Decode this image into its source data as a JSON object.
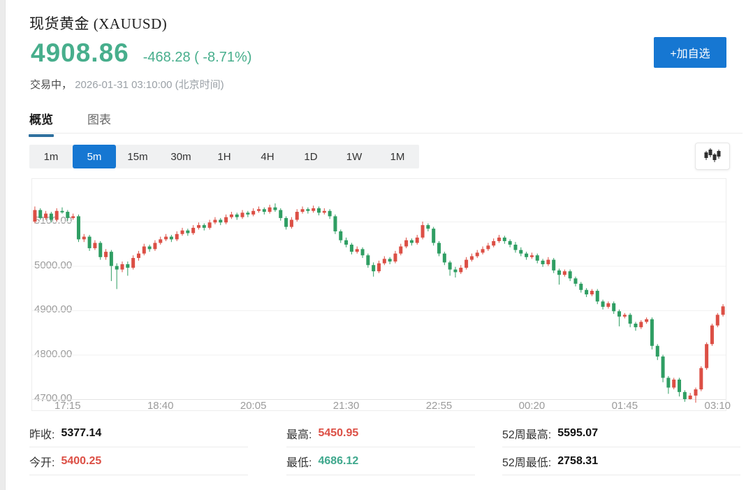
{
  "header": {
    "title": "现货黄金 (XAUUSD)",
    "price": "4908.86",
    "change": "-468.28 ( -8.71%)",
    "status_prefix": "交易中，",
    "timestamp": "2026-01-31 03:10:00 (北京时间)",
    "favorite_button_label": "+加自选",
    "price_color": "#47ae8c",
    "button_color": "#1677d2"
  },
  "tabs": [
    {
      "label": "概览",
      "active": true
    },
    {
      "label": "图表",
      "active": false
    }
  ],
  "toolbar": {
    "timeframes": [
      "1m",
      "5m",
      "15m",
      "30m",
      "1H",
      "4H",
      "1D",
      "1W",
      "1M"
    ],
    "active_timeframe": "5m",
    "chart_style_icon": "candlestick-icon"
  },
  "chart_data": {
    "type": "candlestick",
    "symbol": "XAUUSD",
    "interval": "5m",
    "start_time": "16:45",
    "up_color": "#dc4f45",
    "down_color": "#2f9e63",
    "grid": true,
    "ylim": [
      4675,
      5196
    ],
    "y_ticks": [
      {
        "label": "5100.00",
        "price": 5100
      },
      {
        "label": "5000.00",
        "price": 5000
      },
      {
        "label": "4900.00",
        "price": 4900
      },
      {
        "label": "4800.00",
        "price": 4800
      },
      {
        "label": "4700.00",
        "price": 4700
      }
    ],
    "x_ticks": [
      {
        "label": "17:15",
        "index": 6
      },
      {
        "label": "18:40",
        "index": 23
      },
      {
        "label": "20:05",
        "index": 40
      },
      {
        "label": "21:30",
        "index": 57
      },
      {
        "label": "22:55",
        "index": 74
      },
      {
        "label": "00:20",
        "index": 91
      },
      {
        "label": "01:45",
        "index": 108
      },
      {
        "label": "03:10",
        "index": 125
      }
    ],
    "candles": [
      [
        5100,
        5134,
        5096,
        5126
      ],
      [
        5126,
        5130,
        5104,
        5108
      ],
      [
        5108,
        5124,
        5104,
        5118
      ],
      [
        5118,
        5122,
        5098,
        5104
      ],
      [
        5104,
        5130,
        5100,
        5124
      ],
      [
        5124,
        5132,
        5118,
        5122
      ],
      [
        5122,
        5126,
        5102,
        5108
      ],
      [
        5108,
        5118,
        5104,
        5112
      ],
      [
        5112,
        5116,
        5054,
        5060
      ],
      [
        5060,
        5072,
        5054,
        5066
      ],
      [
        5066,
        5070,
        5034,
        5040
      ],
      [
        5040,
        5058,
        5036,
        5052
      ],
      [
        5052,
        5056,
        5014,
        5020
      ],
      [
        5020,
        5038,
        5014,
        5032
      ],
      [
        5032,
        5036,
        4966,
        5000
      ],
      [
        5000,
        5006,
        4948,
        4992
      ],
      [
        4992,
        5010,
        4986,
        5004
      ],
      [
        5004,
        5010,
        4978,
        4996
      ],
      [
        4996,
        5024,
        4992,
        5018
      ],
      [
        5018,
        5034,
        5012,
        5028
      ],
      [
        5028,
        5050,
        5024,
        5044
      ],
      [
        5044,
        5048,
        5032,
        5038
      ],
      [
        5038,
        5058,
        5034,
        5052
      ],
      [
        5052,
        5066,
        5048,
        5060
      ],
      [
        5060,
        5072,
        5056,
        5066
      ],
      [
        5066,
        5070,
        5054,
        5060
      ],
      [
        5060,
        5078,
        5056,
        5072
      ],
      [
        5072,
        5086,
        5068,
        5080
      ],
      [
        5080,
        5084,
        5068,
        5074
      ],
      [
        5074,
        5092,
        5070,
        5086
      ],
      [
        5086,
        5098,
        5082,
        5092
      ],
      [
        5092,
        5096,
        5080,
        5086
      ],
      [
        5086,
        5104,
        5082,
        5098
      ],
      [
        5098,
        5110,
        5094,
        5104
      ],
      [
        5104,
        5108,
        5092,
        5098
      ],
      [
        5098,
        5116,
        5094,
        5110
      ],
      [
        5110,
        5122,
        5106,
        5116
      ],
      [
        5116,
        5120,
        5104,
        5110
      ],
      [
        5110,
        5126,
        5106,
        5120
      ],
      [
        5120,
        5124,
        5110,
        5116
      ],
      [
        5116,
        5130,
        5112,
        5124
      ],
      [
        5124,
        5134,
        5120,
        5128
      ],
      [
        5128,
        5132,
        5116,
        5122
      ],
      [
        5122,
        5138,
        5118,
        5132
      ],
      [
        5132,
        5141,
        5122,
        5126
      ],
      [
        5126,
        5130,
        5102,
        5108
      ],
      [
        5108,
        5112,
        5082,
        5088
      ],
      [
        5088,
        5110,
        5084,
        5104
      ],
      [
        5104,
        5128,
        5100,
        5122
      ],
      [
        5122,
        5134,
        5118,
        5128
      ],
      [
        5128,
        5132,
        5118,
        5124
      ],
      [
        5124,
        5136,
        5120,
        5130
      ],
      [
        5130,
        5134,
        5114,
        5120
      ],
      [
        5120,
        5130,
        5116,
        5124
      ],
      [
        5124,
        5128,
        5106,
        5112
      ],
      [
        5112,
        5116,
        5072,
        5078
      ],
      [
        5078,
        5082,
        5052,
        5058
      ],
      [
        5058,
        5064,
        5042,
        5048
      ],
      [
        5048,
        5052,
        5026,
        5032
      ],
      [
        5032,
        5044,
        5028,
        5038
      ],
      [
        5038,
        5042,
        5018,
        5024
      ],
      [
        5024,
        5028,
        4996,
        5002
      ],
      [
        5002,
        5008,
        4976,
        4988
      ],
      [
        4988,
        5012,
        4984,
        5006
      ],
      [
        5006,
        5022,
        5002,
        5016
      ],
      [
        5016,
        5020,
        5004,
        5010
      ],
      [
        5010,
        5034,
        5006,
        5028
      ],
      [
        5028,
        5050,
        5024,
        5044
      ],
      [
        5044,
        5064,
        5040,
        5058
      ],
      [
        5058,
        5062,
        5046,
        5052
      ],
      [
        5052,
        5070,
        5048,
        5064
      ],
      [
        5064,
        5100,
        5060,
        5092
      ],
      [
        5092,
        5096,
        5078,
        5084
      ],
      [
        5084,
        5088,
        5046,
        5052
      ],
      [
        5052,
        5056,
        5022,
        5028
      ],
      [
        5028,
        5032,
        5002,
        5008
      ],
      [
        5008,
        5012,
        4978,
        4992
      ],
      [
        4992,
        4998,
        4974,
        4986
      ],
      [
        4986,
        5002,
        4982,
        4996
      ],
      [
        4996,
        5020,
        4992,
        5014
      ],
      [
        5014,
        5028,
        5010,
        5022
      ],
      [
        5022,
        5036,
        5018,
        5030
      ],
      [
        5030,
        5044,
        5026,
        5038
      ],
      [
        5038,
        5052,
        5034,
        5046
      ],
      [
        5046,
        5062,
        5042,
        5056
      ],
      [
        5056,
        5070,
        5052,
        5064
      ],
      [
        5064,
        5068,
        5050,
        5056
      ],
      [
        5056,
        5060,
        5042,
        5048
      ],
      [
        5048,
        5054,
        5030,
        5036
      ],
      [
        5036,
        5042,
        5022,
        5028
      ],
      [
        5028,
        5032,
        5014,
        5020
      ],
      [
        5020,
        5030,
        5016,
        5024
      ],
      [
        5024,
        5028,
        5006,
        5012
      ],
      [
        5012,
        5016,
        4998,
        5004
      ],
      [
        5004,
        5020,
        5000,
        5014
      ],
      [
        5014,
        5018,
        4984,
        4990
      ],
      [
        4990,
        4994,
        4958,
        4980
      ],
      [
        4980,
        4992,
        4976,
        4988
      ],
      [
        4988,
        4992,
        4966,
        4972
      ],
      [
        4972,
        4976,
        4954,
        4960
      ],
      [
        4960,
        4964,
        4940,
        4946
      ],
      [
        4946,
        4950,
        4930,
        4936
      ],
      [
        4936,
        4948,
        4932,
        4944
      ],
      [
        4944,
        4948,
        4914,
        4920
      ],
      [
        4920,
        4924,
        4902,
        4908
      ],
      [
        4908,
        4920,
        4904,
        4916
      ],
      [
        4916,
        4920,
        4892,
        4898
      ],
      [
        4898,
        4902,
        4864,
        4886
      ],
      [
        4886,
        4894,
        4882,
        4890
      ],
      [
        4890,
        4894,
        4862,
        4870
      ],
      [
        4870,
        4874,
        4854,
        4862
      ],
      [
        4862,
        4878,
        4858,
        4874
      ],
      [
        4874,
        4884,
        4870,
        4880
      ],
      [
        4880,
        4884,
        4812,
        4820
      ],
      [
        4820,
        4824,
        4788,
        4796
      ],
      [
        4796,
        4800,
        4738,
        4748
      ],
      [
        4748,
        4752,
        4712,
        4726
      ],
      [
        4726,
        4748,
        4722,
        4744
      ],
      [
        4744,
        4748,
        4706,
        4716
      ],
      [
        4716,
        4720,
        4694,
        4700
      ],
      [
        4700,
        4714,
        4699,
        4708
      ],
      [
        4708,
        4726,
        4692,
        4722
      ],
      [
        4722,
        4774,
        4718,
        4770
      ],
      [
        4770,
        4828,
        4766,
        4824
      ],
      [
        4824,
        4870,
        4820,
        4866
      ],
      [
        4866,
        4894,
        4862,
        4890
      ],
      [
        4890,
        4914,
        4886,
        4909
      ]
    ]
  },
  "stats": {
    "columns": [
      {
        "rows": [
          {
            "label": "昨收:",
            "value": "5377.14",
            "color": "#111111"
          },
          {
            "label": "今开:",
            "value": "5400.25",
            "color": "#dc4f45"
          }
        ]
      },
      {
        "rows": [
          {
            "label": "最高:",
            "value": "5450.95",
            "color": "#dc4f45"
          },
          {
            "label": "最低:",
            "value": "4686.12",
            "color": "#3fa88d"
          }
        ]
      },
      {
        "rows": [
          {
            "label": "52周最高:",
            "value": "5595.07",
            "color": "#111111"
          },
          {
            "label": "52周最低:",
            "value": "2758.31",
            "color": "#111111"
          }
        ]
      }
    ]
  }
}
